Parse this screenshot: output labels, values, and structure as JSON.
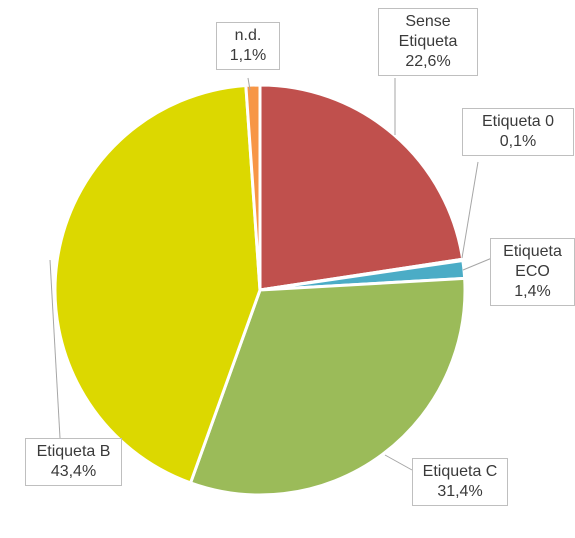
{
  "chart_data": {
    "type": "pie",
    "categories": [
      "Sense Etiqueta",
      "Etiqueta 0",
      "Etiqueta ECO",
      "Etiqueta C",
      "Etiqueta B",
      "n.d."
    ],
    "values": [
      22.6,
      0.1,
      1.4,
      31.4,
      43.4,
      1.1
    ],
    "value_labels": [
      "22,6%",
      "0,1%",
      "1,4%",
      "31,4%",
      "43,4%",
      "1,1%"
    ],
    "colors": [
      "#c0504d",
      "#4f81bd",
      "#4bacc6",
      "#9bbb59",
      "#dcd800",
      "#f79646"
    ]
  }
}
